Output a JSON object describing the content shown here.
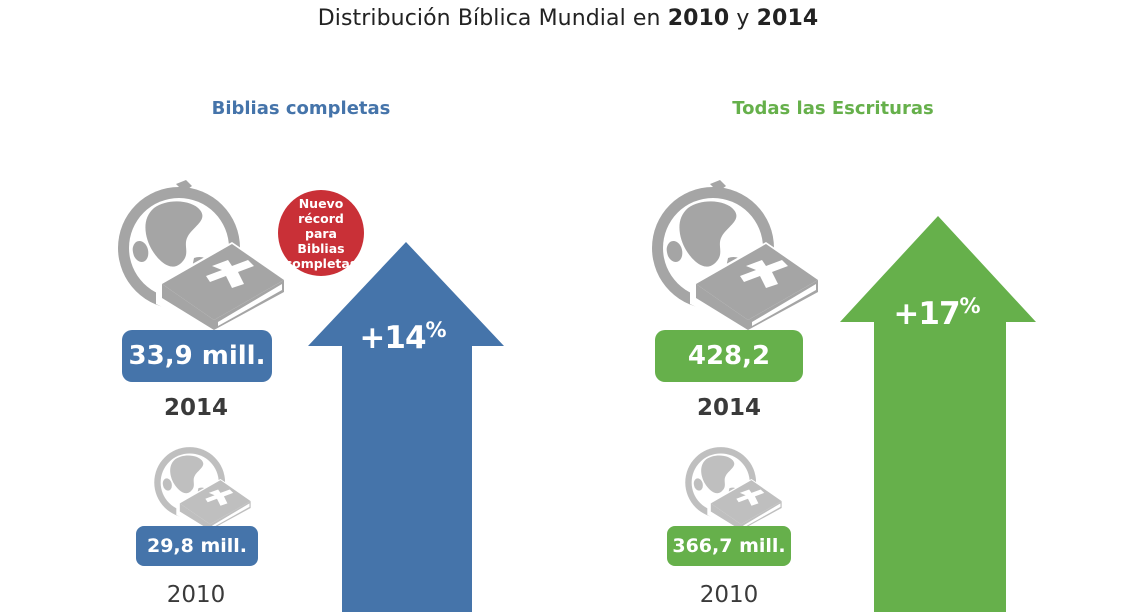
{
  "title": {
    "prefix": "Distribución Bíblica Mundial en ",
    "year1": "2010",
    "conj": " y ",
    "year2": "2014"
  },
  "colors": {
    "blue": "#4574aa",
    "green": "#66b04b",
    "red": "#c93037",
    "icon_gray": "#a5a5a5",
    "icon_gray_light": "#bfbfbf"
  },
  "icons": {
    "globe_bible": "globe-with-bible-cross-icon",
    "arrow": "up-arrow-icon"
  },
  "panels": {
    "left": {
      "title": "Biblias completas",
      "badge": "Nuevo\nrécord para\nBiblias\ncompletas",
      "y2014": {
        "value": "33,9 mill.",
        "year": "2014"
      },
      "y2010": {
        "value": "29,8 mill.",
        "year": "2010"
      },
      "change": {
        "num": "+14",
        "sign": "%"
      }
    },
    "right": {
      "title": "Todas las Escrituras",
      "y2014": {
        "value": "428,2 mill.",
        "year": "2014"
      },
      "y2010": {
        "value": "366,7 mill.",
        "year": "2010"
      },
      "change": {
        "num": "+17",
        "sign": "%"
      }
    }
  },
  "chart_data": {
    "type": "bar",
    "title": "Distribución Bíblica Mundial en 2010 y 2014",
    "unit": "mill.",
    "groups": [
      {
        "name": "Biblias completas",
        "categories": [
          "2010",
          "2014"
        ],
        "values": [
          29.8,
          33.9
        ],
        "change_percent": 14
      },
      {
        "name": "Todas las Escrituras",
        "categories": [
          "2010",
          "2014"
        ],
        "values": [
          366.7,
          428.2
        ],
        "change_percent": 17
      }
    ],
    "annotations": [
      "Nuevo récord para Biblias completas"
    ]
  }
}
